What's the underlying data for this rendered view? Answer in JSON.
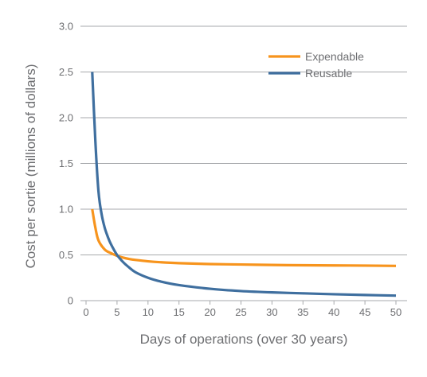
{
  "chart_data": {
    "type": "line",
    "xlabel": "Days of operations (over 30 years)",
    "ylabel": "Cost per sortie (millions of dollars)",
    "xlim": [
      0,
      50
    ],
    "ylim": [
      0,
      3.0
    ],
    "x_ticks": [
      "0",
      "5",
      "10",
      "15",
      "20",
      "25",
      "30",
      "35",
      "40",
      "45",
      "50"
    ],
    "y_ticks": [
      "0",
      "0.5",
      "1.0",
      "1.5",
      "2.0",
      "2.5",
      "3.0"
    ],
    "grid": "horizontal",
    "legend_position": "top-right",
    "series": [
      {
        "name": "Expendable",
        "color": "#f7941d",
        "x": [
          1,
          1.5,
          2,
          3,
          4,
          5,
          6,
          7,
          8,
          10,
          12,
          15,
          20,
          25,
          30,
          35,
          40,
          45,
          50
        ],
        "y": [
          1.0,
          0.8,
          0.66,
          0.56,
          0.52,
          0.49,
          0.47,
          0.455,
          0.445,
          0.43,
          0.42,
          0.41,
          0.4,
          0.395,
          0.39,
          0.387,
          0.385,
          0.383,
          0.38
        ]
      },
      {
        "name": "Reusable",
        "color": "#3f6f9f",
        "x": [
          1,
          1.5,
          2,
          2.5,
          3,
          3.5,
          4,
          5,
          6,
          7,
          8,
          10,
          12,
          15,
          20,
          25,
          30,
          35,
          40,
          45,
          50
        ],
        "y": [
          2.5,
          1.75,
          1.2,
          0.95,
          0.8,
          0.7,
          0.62,
          0.5,
          0.42,
          0.36,
          0.31,
          0.25,
          0.21,
          0.17,
          0.13,
          0.105,
          0.09,
          0.08,
          0.07,
          0.062,
          0.055
        ]
      }
    ]
  }
}
